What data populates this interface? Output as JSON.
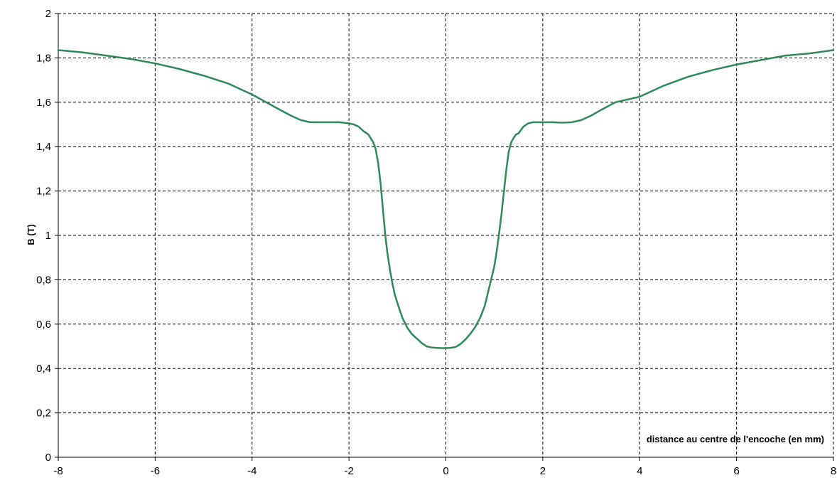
{
  "chart_data": {
    "type": "line",
    "title": "",
    "xlabel": "distance au centre de l'encoche (en mm)",
    "ylabel": "B (T)",
    "xlim": [
      -8,
      8
    ],
    "ylim": [
      0,
      2
    ],
    "grid": true,
    "legend": "none",
    "decimal_separator": ",",
    "x_ticks": [
      "-8",
      "-6",
      "-4",
      "-2",
      "0",
      "2",
      "4",
      "6",
      "8"
    ],
    "y_ticks": [
      "0",
      "0,2",
      "0,4",
      "0,6",
      "0,8",
      "1",
      "1,2",
      "1,4",
      "1,6",
      "1,8",
      "2"
    ],
    "colors": {
      "series": "#2e8b57",
      "grid": "#000000",
      "axis": "#000000"
    },
    "series": [
      {
        "x": [
          -8,
          -7.5,
          -7,
          -6.5,
          -6,
          -5.5,
          -5,
          -4.5,
          -4,
          -3.5,
          -3.2,
          -3,
          -2.8,
          -2.6,
          -2.4,
          -2.2,
          -2,
          -1.9,
          -1.8,
          -1.7,
          -1.6,
          -1.5,
          -1.45,
          -1.4,
          -1.35,
          -1.3,
          -1.25,
          -1.2,
          -1.15,
          -1.1,
          -1.05,
          -1,
          -0.9,
          -0.8,
          -0.7,
          -0.6,
          -0.5,
          -0.4,
          -0.3,
          -0.2,
          -0.1,
          0,
          0.1,
          0.2,
          0.3,
          0.4,
          0.5,
          0.6,
          0.7,
          0.8,
          0.9,
          1,
          1.05,
          1.1,
          1.15,
          1.2,
          1.25,
          1.3,
          1.35,
          1.4,
          1.45,
          1.5,
          1.6,
          1.7,
          1.8,
          1.9,
          2,
          2.2,
          2.4,
          2.6,
          2.8,
          3,
          3.2,
          3.5,
          4,
          4.5,
          5,
          5.5,
          6,
          6.5,
          7,
          7.5,
          8
        ],
        "y": [
          1.835,
          1.825,
          1.81,
          1.795,
          1.775,
          1.75,
          1.72,
          1.685,
          1.635,
          1.575,
          1.54,
          1.52,
          1.51,
          1.51,
          1.51,
          1.51,
          1.505,
          1.5,
          1.49,
          1.47,
          1.455,
          1.42,
          1.39,
          1.33,
          1.24,
          1.12,
          1.0,
          0.91,
          0.84,
          0.78,
          0.73,
          0.695,
          0.63,
          0.585,
          0.555,
          0.535,
          0.515,
          0.5,
          0.495,
          0.493,
          0.492,
          0.492,
          0.493,
          0.497,
          0.51,
          0.53,
          0.555,
          0.585,
          0.625,
          0.68,
          0.77,
          0.86,
          0.93,
          1.01,
          1.1,
          1.2,
          1.3,
          1.38,
          1.42,
          1.44,
          1.455,
          1.46,
          1.49,
          1.505,
          1.51,
          1.51,
          1.51,
          1.51,
          1.508,
          1.51,
          1.52,
          1.54,
          1.565,
          1.6,
          1.625,
          1.675,
          1.715,
          1.745,
          1.77,
          1.79,
          1.81,
          1.82,
          1.835
        ]
      }
    ]
  }
}
